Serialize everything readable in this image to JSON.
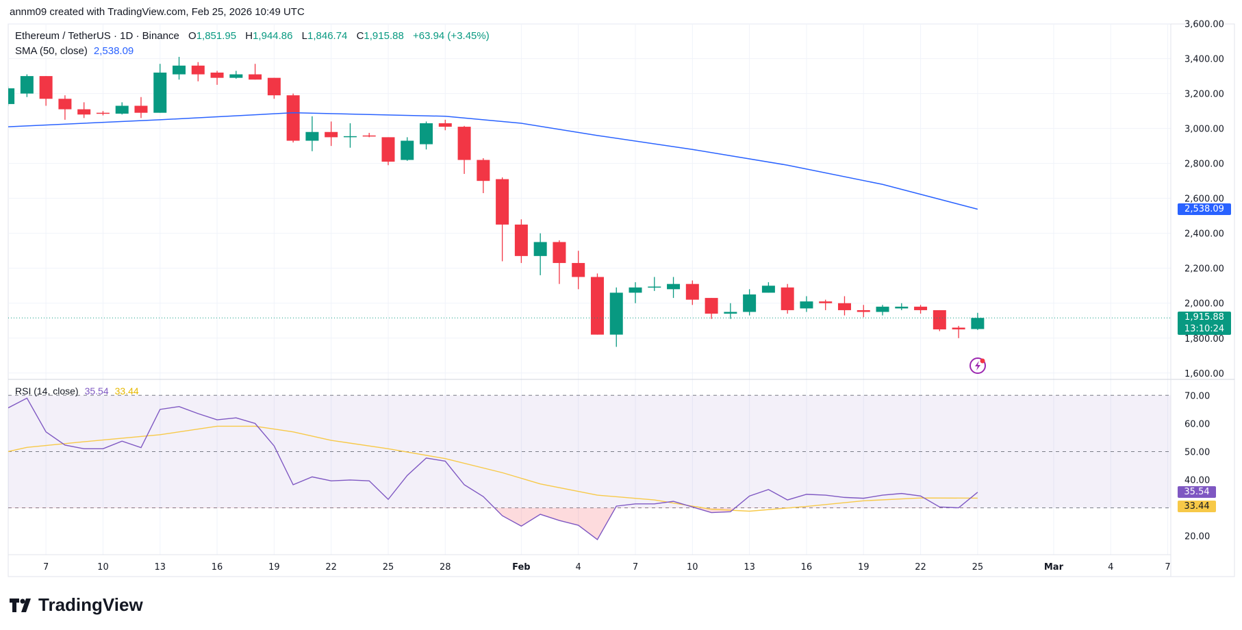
{
  "credit": "annm09 created with TradingView.com, Feb 25, 2026 10:49 UTC",
  "legend": {
    "symbol": "Ethereum / TetherUS · 1D · Binance",
    "o_label": "O",
    "o": "1,851.95",
    "h_label": "H",
    "h": "1,944.86",
    "l_label": "L",
    "l": "1,846.74",
    "c_label": "C",
    "c": "1,915.88",
    "change": "+63.94 (+3.45%)",
    "sma_label": "SMA (50, close)",
    "sma_value": "2,538.09",
    "rsi_label": "RSI (14, close)",
    "rsi_value": "35.54",
    "rsi_ma_value": "33.44"
  },
  "badges": {
    "sma": "2,538.09",
    "price": "1,915.88",
    "countdown": "13:10:24",
    "rsi": "35.54",
    "rsi_ma": "33.44"
  },
  "logo_text": "TradingView",
  "colors": {
    "up": "#089981",
    "down": "#f23645",
    "sma": "#2962ff",
    "rsi": "#7e57c2",
    "rsi_ma": "#f7c948",
    "grid": "#f0f3fa"
  },
  "chart_data": [
    {
      "type": "candlestick",
      "title": "Ethereum / TetherUS · 1D · Binance",
      "y_ticks": [
        "3,600.00",
        "3,400.00",
        "3,200.00",
        "3,000.00",
        "2,800.00",
        "2,600.00",
        "2,400.00",
        "2,200.00",
        "2,000.00",
        "1,800.00",
        "1,600.00"
      ],
      "y_tick_values": [
        3600,
        3400,
        3200,
        3000,
        2800,
        2600,
        2400,
        2200,
        2000,
        1800,
        1600
      ],
      "ylim": [
        1600,
        3600
      ],
      "x_tick_labels": [
        "7",
        "10",
        "13",
        "16",
        "19",
        "22",
        "25",
        "28",
        "Feb",
        "4",
        "7",
        "10",
        "13",
        "16",
        "19",
        "22",
        "25",
        "Mar",
        "4",
        "7"
      ],
      "x_tick_dates": [
        "2026-01-07",
        "2026-01-10",
        "2026-01-13",
        "2026-01-16",
        "2026-01-19",
        "2026-01-22",
        "2026-01-25",
        "2026-01-28",
        "2026-02-01",
        "2026-02-04",
        "2026-02-07",
        "2026-02-10",
        "2026-02-13",
        "2026-02-16",
        "2026-02-19",
        "2026-02-22",
        "2026-02-25",
        "2026-03-01",
        "2026-03-04",
        "2026-03-07"
      ],
      "start_date": "2026-01-05",
      "ohlc": [
        [
          3140,
          3240,
          3130,
          3230
        ],
        [
          3200,
          3310,
          3180,
          3300
        ],
        [
          3300,
          3300,
          3130,
          3170
        ],
        [
          3170,
          3190,
          3050,
          3110
        ],
        [
          3110,
          3150,
          3060,
          3080
        ],
        [
          3090,
          3100,
          3075,
          3085
        ],
        [
          3085,
          3150,
          3080,
          3130
        ],
        [
          3130,
          3180,
          3060,
          3090
        ],
        [
          3090,
          3370,
          3090,
          3320
        ],
        [
          3310,
          3410,
          3280,
          3360
        ],
        [
          3360,
          3380,
          3270,
          3310
        ],
        [
          3320,
          3330,
          3250,
          3290
        ],
        [
          3290,
          3330,
          3285,
          3310
        ],
        [
          3310,
          3370,
          3280,
          3280
        ],
        [
          3290,
          3290,
          3170,
          3190
        ],
        [
          3190,
          3200,
          2920,
          2930
        ],
        [
          2930,
          3070,
          2870,
          2980
        ],
        [
          2980,
          3040,
          2900,
          2950
        ],
        [
          2954,
          3030,
          2890,
          2956
        ],
        [
          2960,
          2975,
          2950,
          2955
        ],
        [
          2950,
          2950,
          2790,
          2810
        ],
        [
          2820,
          2950,
          2815,
          2930
        ],
        [
          2910,
          3040,
          2880,
          3030
        ],
        [
          3030,
          3050,
          2990,
          3010
        ],
        [
          3010,
          3015,
          2740,
          2820
        ],
        [
          2820,
          2830,
          2630,
          2700
        ],
        [
          2710,
          2720,
          2240,
          2450
        ],
        [
          2450,
          2480,
          2230,
          2270
        ],
        [
          2270,
          2400,
          2160,
          2350
        ],
        [
          2350,
          2360,
          2110,
          2230
        ],
        [
          2230,
          2300,
          2080,
          2150
        ],
        [
          2150,
          2170,
          1820,
          1820
        ],
        [
          1820,
          2090,
          1750,
          2060
        ],
        [
          2060,
          2120,
          2000,
          2090
        ],
        [
          2090,
          2150,
          2070,
          2095
        ],
        [
          2080,
          2150,
          2030,
          2110
        ],
        [
          2110,
          2130,
          1990,
          2020
        ],
        [
          2030,
          2030,
          1910,
          1940
        ],
        [
          1940,
          2000,
          1910,
          1950
        ],
        [
          1950,
          2080,
          1930,
          2050
        ],
        [
          2060,
          2120,
          2060,
          2100
        ],
        [
          2090,
          2110,
          1940,
          1960
        ],
        [
          1970,
          2040,
          1950,
          2010
        ],
        [
          2010,
          2020,
          1960,
          2000
        ],
        [
          2000,
          2040,
          1930,
          1960
        ],
        [
          1960,
          1990,
          1920,
          1950
        ],
        [
          1950,
          1990,
          1930,
          1980
        ],
        [
          1970,
          2000,
          1960,
          1980
        ],
        [
          1980,
          1990,
          1940,
          1960
        ],
        [
          1960,
          1960,
          1840,
          1850
        ],
        [
          1860,
          1870,
          1800,
          1850
        ],
        [
          1851.95,
          1944.86,
          1846.74,
          1915.88
        ]
      ],
      "sma": {
        "name": "SMA (50, close)",
        "points": [
          [
            "2026-01-05",
            3010
          ],
          [
            "2026-01-13",
            3050
          ],
          [
            "2026-01-20",
            3090
          ],
          [
            "2026-01-28",
            3070
          ],
          [
            "2026-02-01",
            3030
          ],
          [
            "2026-02-05",
            2960
          ],
          [
            "2026-02-10",
            2880
          ],
          [
            "2026-02-15",
            2790
          ],
          [
            "2026-02-20",
            2680
          ],
          [
            "2026-02-25",
            2538.09
          ]
        ]
      },
      "last_price": 1915.88
    },
    {
      "type": "line",
      "title": "RSI (14, close)",
      "y_ticks": [
        "70.00",
        "60.00",
        "50.00",
        "40.00",
        "20.00"
      ],
      "y_tick_values": [
        70,
        60,
        50,
        40,
        20
      ],
      "bands": [
        70,
        50,
        30
      ],
      "ylim": [
        14,
        72
      ],
      "series": [
        {
          "name": "RSI",
          "values": [
            65.5,
            69,
            57,
            52.3,
            51,
            51,
            53.7,
            51.4,
            65,
            66,
            63.5,
            61.3,
            62,
            60,
            52,
            38.2,
            41,
            39.6,
            39.9,
            39.6,
            33,
            41.5,
            47.7,
            46.6,
            38.2,
            34,
            27.2,
            23.5,
            27.7,
            25.5,
            23.8,
            18.7,
            30.6,
            31.4,
            31.4,
            32.3,
            30.3,
            28.3,
            28.6,
            34.2,
            36.5,
            32.8,
            34.8,
            34.5,
            33.7,
            33.4,
            34.5,
            35.1,
            34.2,
            30.3,
            30,
            35.54
          ]
        },
        {
          "name": "RSI MA",
          "points": [
            [
              "2026-01-05",
              50
            ],
            [
              "2026-01-06",
              51.5
            ],
            [
              "2026-01-09",
              53.5
            ],
            [
              "2026-01-13",
              56
            ],
            [
              "2026-01-16",
              59
            ],
            [
              "2026-01-18",
              59
            ],
            [
              "2026-01-20",
              57
            ],
            [
              "2026-01-22",
              54
            ],
            [
              "2026-01-25",
              51
            ],
            [
              "2026-01-28",
              47.5
            ],
            [
              "2026-01-31",
              42.5
            ],
            [
              "2026-02-02",
              38.5
            ],
            [
              "2026-02-05",
              34.5
            ],
            [
              "2026-02-08",
              32.8
            ],
            [
              "2026-02-11",
              29.5
            ],
            [
              "2026-02-13",
              28.8
            ],
            [
              "2026-02-16",
              30.5
            ],
            [
              "2026-02-19",
              32.5
            ],
            [
              "2026-02-22",
              33.5
            ],
            [
              "2026-02-25",
              33.44
            ]
          ]
        }
      ]
    }
  ]
}
